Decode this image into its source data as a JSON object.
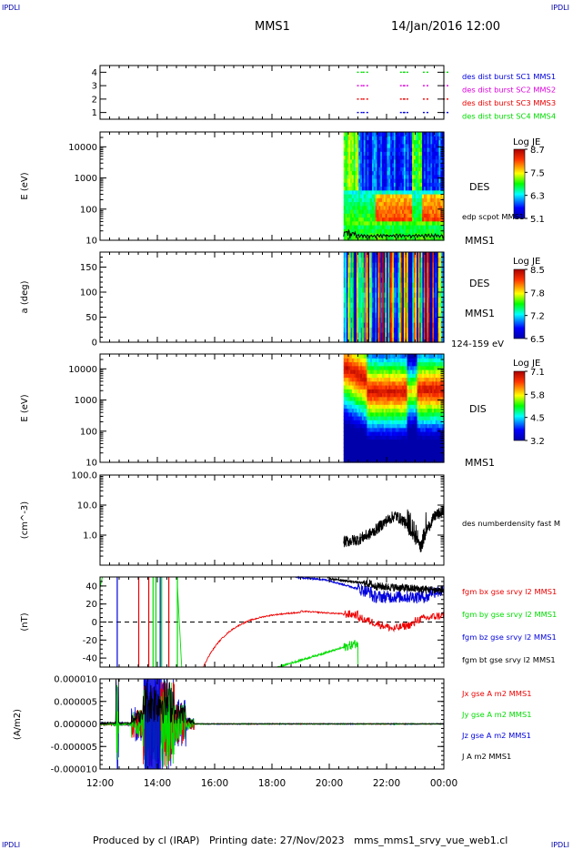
{
  "header": {
    "corner_left": "IPDLI",
    "corner_right": "IPDLI",
    "spacecraft": "MMS1",
    "datetime": "14/Jan/2016 12:00"
  },
  "footer": {
    "text": "Produced by cl (IRAP)   Printing date: 27/Nov/2023   mms_mms1_srvy_vue_web1.cl",
    "corner_left": "IPDLI",
    "corner_right": "IPDLI"
  },
  "colors": {
    "black": "#000000",
    "red": "#ee0000",
    "green": "#00dd00",
    "blue": "#0000dd",
    "magenta": "#dd00dd",
    "dashed_zero": "#000000"
  },
  "chart_data": [
    {
      "type": "scatter",
      "id": "burst",
      "ylim": [
        0.5,
        4.5
      ],
      "yticks": [
        "1",
        "2",
        "3",
        "4"
      ],
      "legend": [
        {
          "label": "des dist burst SC1 MMS1",
          "color": "#0000dd"
        },
        {
          "label": "des dist burst SC2 MMS2",
          "color": "#dd00dd"
        },
        {
          "label": "des dist burst SC3 MMS3",
          "color": "#ee0000"
        },
        {
          "label": "des dist burst SC4 MMS4",
          "color": "#00dd00"
        }
      ],
      "burst_times_h": [
        21.0,
        21.2,
        22.5,
        22.6,
        23.3,
        24.0
      ]
    },
    {
      "type": "heatmap",
      "id": "des_energy",
      "ylabel": "E (eV)",
      "ylim": [
        10,
        30000
      ],
      "yscale": "log",
      "yticks": [
        "10",
        "100",
        "1000",
        "10000"
      ],
      "label": "DES",
      "label2": "MMS1",
      "overlay_label": "edp scpot MMS1",
      "colorbar": {
        "title": "Log JE",
        "ticks": [
          "8.7",
          "7.5",
          "6.3",
          "5.1"
        ]
      },
      "time_range_h": [
        20.5,
        24.0
      ]
    },
    {
      "type": "heatmap",
      "id": "des_pitch",
      "ylabel": "a (deg)",
      "ylim": [
        0,
        180
      ],
      "yticks": [
        "0",
        "50",
        "100",
        "150"
      ],
      "label": "DES",
      "label2": "MMS1",
      "sublabel": "124-159 eV",
      "colorbar": {
        "title": "Log JE",
        "ticks": [
          "8.5",
          "7.8",
          "7.2",
          "6.5"
        ]
      },
      "time_range_h": [
        20.5,
        24.0
      ]
    },
    {
      "type": "heatmap",
      "id": "dis_energy",
      "ylabel": "E (eV)",
      "ylim": [
        10,
        30000
      ],
      "yscale": "log",
      "yticks": [
        "10",
        "100",
        "1000",
        "10000"
      ],
      "label": "DIS",
      "label2": "MMS1",
      "colorbar": {
        "title": "Log JE",
        "ticks": [
          "7.1",
          "5.8",
          "4.5",
          "3.2"
        ]
      },
      "time_range_h": [
        20.5,
        24.0
      ]
    },
    {
      "type": "line",
      "id": "density",
      "ylabel": "(cm^-3)",
      "ylim": [
        0.1,
        100
      ],
      "yscale": "log",
      "yticks": [
        "1.0",
        "10.0",
        "100.0"
      ],
      "legend": [
        {
          "label": "des numberdensity fast M",
          "color": "#000000"
        }
      ],
      "series_profile": [
        [
          20.5,
          0.6
        ],
        [
          21.0,
          0.7
        ],
        [
          21.5,
          1.2
        ],
        [
          22.0,
          3.0
        ],
        [
          22.3,
          4.5
        ],
        [
          22.6,
          3.0
        ],
        [
          22.9,
          1.0
        ],
        [
          23.2,
          0.4
        ],
        [
          23.3,
          0.7
        ],
        [
          23.4,
          1.5
        ],
        [
          23.7,
          4.5
        ],
        [
          24.0,
          6.0
        ]
      ]
    },
    {
      "type": "line",
      "id": "bfield",
      "ylabel": "(nT)",
      "ylim": [
        -50,
        50
      ],
      "yticks": [
        "-40",
        "-20",
        "0",
        "20",
        "40"
      ],
      "legend": [
        {
          "label": "fgm bx gse srvy l2 MMS1",
          "color": "#ee0000"
        },
        {
          "label": "fgm by gse srvy l2 MMS1",
          "color": "#00dd00"
        },
        {
          "label": "fgm bz gse srvy l2 MMS1",
          "color": "#0000dd"
        },
        {
          "label": "fgm bt gse srvy l2 MMS1",
          "color": "#000000"
        }
      ]
    },
    {
      "type": "line",
      "id": "current",
      "ylabel": "(A/m2)",
      "ylim": [
        -1e-05,
        1e-05
      ],
      "yticks": [
        "-0.000010",
        "-0.000005",
        "0.000000",
        "0.000005",
        "0.000010"
      ],
      "legend": [
        {
          "label": "Jx gse A m2 MMS1",
          "color": "#ee0000"
        },
        {
          "label": "Jy gse A m2 MMS1",
          "color": "#00dd00"
        },
        {
          "label": "Jz gse A m2 MMS1",
          "color": "#0000dd"
        },
        {
          "label": "J A m2 MMS1",
          "color": "#000000"
        }
      ]
    }
  ],
  "xaxis": {
    "range_h": [
      12,
      24
    ],
    "ticks": [
      "12:00",
      "14:00",
      "16:00",
      "18:00",
      "20:00",
      "22:00",
      "00:00"
    ]
  }
}
